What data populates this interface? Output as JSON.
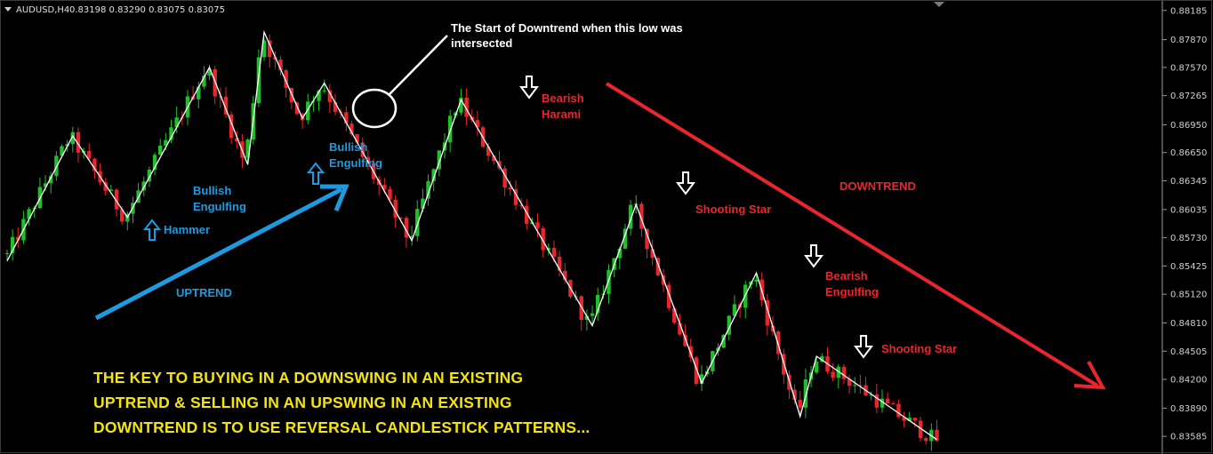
{
  "header": {
    "symbol_label": "AUDUSD,H4",
    "ohlc": "0.83198 0.83290 0.83075 0.83075"
  },
  "colors": {
    "background": "#000000",
    "bull_candle": "#1fbf2a",
    "bear_candle": "#e8262b",
    "zigzag": "#ffffff",
    "uptrend_arrow": "#1e9be0",
    "downtrend_arrow": "#e8262b",
    "headline": "#f2e313"
  },
  "chart_data": {
    "type": "candlestick",
    "symbol": "AUDUSD",
    "timeframe": "H4",
    "ylim": [
      0.835,
      0.8825
    ],
    "y_ticks": [
      "0.88185",
      "0.87870",
      "0.87570",
      "0.87265",
      "0.86950",
      "0.86650",
      "0.86345",
      "0.86035",
      "0.85730",
      "0.85425",
      "0.85120",
      "0.84810",
      "0.84505",
      "0.84200",
      "0.83890",
      "0.83585"
    ],
    "y_tick_values": [
      0.88185,
      0.8787,
      0.8757,
      0.87265,
      0.8695,
      0.8665,
      0.86345,
      0.86035,
      0.8573,
      0.85425,
      0.8512,
      0.8481,
      0.84505,
      0.842,
      0.8389,
      0.83585
    ],
    "swing_points": [
      {
        "bar": 0,
        "price": 0.8548
      },
      {
        "bar": 12,
        "price": 0.8683
      },
      {
        "bar": 22,
        "price": 0.8595
      },
      {
        "bar": 37,
        "price": 0.8757
      },
      {
        "bar": 44,
        "price": 0.8652
      },
      {
        "bar": 47,
        "price": 0.8795
      },
      {
        "bar": 54,
        "price": 0.8702
      },
      {
        "bar": 58,
        "price": 0.874
      },
      {
        "bar": 74,
        "price": 0.857
      },
      {
        "bar": 83,
        "price": 0.8722
      },
      {
        "bar": 107,
        "price": 0.8478
      },
      {
        "bar": 115,
        "price": 0.8609
      },
      {
        "bar": 127,
        "price": 0.8416
      },
      {
        "bar": 137,
        "price": 0.8535
      },
      {
        "bar": 145,
        "price": 0.838
      },
      {
        "bar": 148,
        "price": 0.8445
      },
      {
        "bar": 170,
        "price": 0.8355
      }
    ],
    "annotations": {
      "hammer": "Hammer",
      "bullish_engulfing_1": "Bullish Engulfing",
      "bullish_engulfing_2": "Bullish Engulfing",
      "uptrend": "UPTREND",
      "downtrend_start": "The Start of Downtrend when this low was intersected",
      "bearish_harami": "Bearish Harami",
      "shooting_star_1": "Shooting Star",
      "bearish_engulfing": "Bearish Engulfing",
      "shooting_star_2": "Shooting Star",
      "downtrend": "DOWNTREND"
    }
  },
  "labels": {
    "hammer": "Hammer",
    "bullish_engulfing_1_line1": "Bullish",
    "bullish_engulfing_1_line2": "Engulfing",
    "bullish_engulfing_2_line1": "Bullish",
    "bullish_engulfing_2_line2": "Engulfing",
    "uptrend": "UPTREND",
    "downtrend_start_line1": "The Start of Downtrend when this low was",
    "downtrend_start_line2": "intersected",
    "bearish_harami_line1": "Bearish",
    "bearish_harami_line2": "Harami",
    "shooting_star_1": "Shooting Star",
    "bearish_engulfing_line1": "Bearish",
    "bearish_engulfing_line2": "Engulfing",
    "shooting_star_2": "Shooting Star",
    "downtrend": "DOWNTREND"
  },
  "headline": {
    "line1": "THE  KEY TO BUYING IN A DOWNSWING IN AN EXISTING",
    "line2": "UPTREND & SELLING IN AN UPSWING IN AN EXISTING",
    "line3": "DOWNTREND IS TO USE REVERSAL CANDLESTICK PATTERNS..."
  }
}
